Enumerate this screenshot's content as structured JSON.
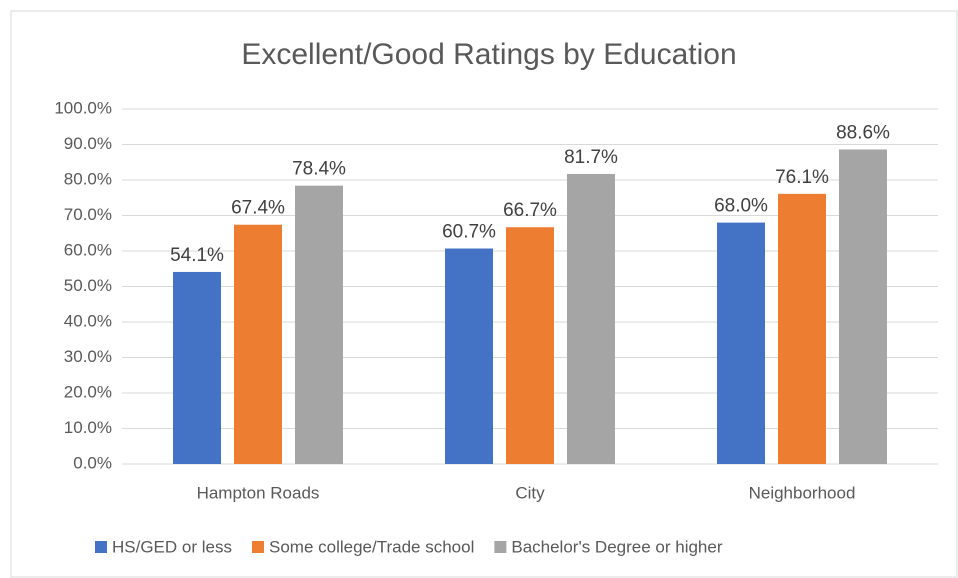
{
  "chart_data": {
    "type": "bar",
    "title": "Excellent/Good Ratings by Education",
    "categories": [
      "Hampton Roads",
      "City",
      "Neighborhood"
    ],
    "series": [
      {
        "name": "HS/GED or less",
        "color": "#4472c4",
        "values": [
          54.1,
          60.7,
          68.0
        ],
        "value_labels": [
          "54.1%",
          "60.7%",
          "68.0%"
        ]
      },
      {
        "name": "Some college/Trade school",
        "color": "#ed7d31",
        "values": [
          67.4,
          66.7,
          76.1
        ],
        "value_labels": [
          "67.4%",
          "66.7%",
          "76.1%"
        ]
      },
      {
        "name": "Bachelor's Degree or higher",
        "color": "#a5a5a5",
        "values": [
          78.4,
          81.7,
          88.6
        ],
        "value_labels": [
          "78.4%",
          "81.7%",
          "88.6%"
        ]
      }
    ],
    "ylim": [
      0,
      100
    ],
    "yticks": [
      {
        "value": 0,
        "label": "0.0%"
      },
      {
        "value": 10,
        "label": "10.0%"
      },
      {
        "value": 20,
        "label": "20.0%"
      },
      {
        "value": 30,
        "label": "30.0%"
      },
      {
        "value": 40,
        "label": "40.0%"
      },
      {
        "value": 50,
        "label": "50.0%"
      },
      {
        "value": 60,
        "label": "60.0%"
      },
      {
        "value": 70,
        "label": "70.0%"
      },
      {
        "value": 80,
        "label": "80.0%"
      },
      {
        "value": 90,
        "label": "90.0%"
      },
      {
        "value": 100,
        "label": "100.0%"
      }
    ],
    "grid": true,
    "legend": "bottom"
  }
}
